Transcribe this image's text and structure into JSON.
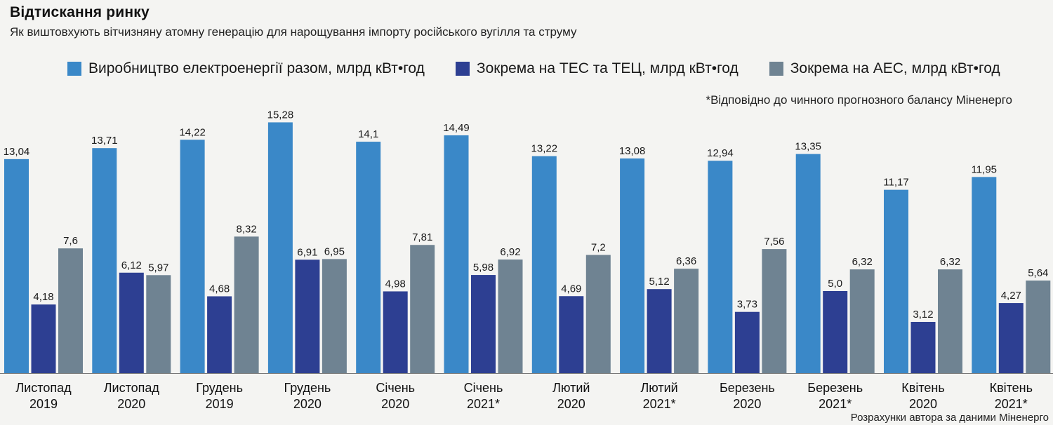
{
  "title": "Відтискання ринку",
  "subtitle": "Як виштовхують вітчизняну атомну генерацію для нарощування імпорту російського вугілля та струму",
  "note": "*Відповідно до чинного прогнозного балансу Міненерго",
  "source": "Розрахунки автора за даними Міненерго",
  "colors": {
    "total": "#3a88c8",
    "tes": "#2d3f92",
    "aes": "#6f8392",
    "background": "#f4f4f2"
  },
  "chart_data": {
    "type": "bar",
    "title": "Відтискання ринку",
    "xlabel": "",
    "ylabel": "",
    "ylim": [
      0,
      16
    ],
    "grid": false,
    "legend_position": "top",
    "categories": [
      [
        "Листопад",
        "2019"
      ],
      [
        "Листопад",
        "2020"
      ],
      [
        "Грудень",
        "2019"
      ],
      [
        "Грудень",
        "2020"
      ],
      [
        "Січень",
        "2020"
      ],
      [
        "Січень",
        "2021*"
      ],
      [
        "Лютий",
        "2020"
      ],
      [
        "Лютий",
        "2021*"
      ],
      [
        "Березень",
        "2020"
      ],
      [
        "Березень",
        "2021*"
      ],
      [
        "Квітень",
        "2020"
      ],
      [
        "Квітень",
        "2021*"
      ]
    ],
    "series": [
      {
        "name": "Виробництво електроенергії разом, млрд кВт•год",
        "color": "#3a88c8",
        "values": [
          13.04,
          13.71,
          14.22,
          15.28,
          14.1,
          14.49,
          13.22,
          13.08,
          12.94,
          13.35,
          11.17,
          11.95
        ],
        "labels": [
          "13,04",
          "13,71",
          "14,22",
          "15,28",
          "14,1",
          "14,49",
          "13,22",
          "13,08",
          "12,94",
          "13,35",
          "11,17",
          "11,95"
        ]
      },
      {
        "name": "Зокрема на ТЕС та ТЕЦ, млрд кВт•год",
        "color": "#2d3f92",
        "values": [
          4.18,
          6.12,
          4.68,
          6.91,
          4.98,
          5.98,
          4.69,
          5.12,
          3.73,
          5.0,
          3.12,
          4.27
        ],
        "labels": [
          "4,18",
          "6,12",
          "4,68",
          "6,91",
          "4,98",
          "5,98",
          "4,69",
          "5,12",
          "3,73",
          "5,0",
          "3,12",
          "4,27"
        ]
      },
      {
        "name": "Зокрема на АЕС, млрд кВт•год",
        "color": "#6f8392",
        "values": [
          7.6,
          5.97,
          8.32,
          6.95,
          7.81,
          6.92,
          7.2,
          6.36,
          7.56,
          6.32,
          6.32,
          5.64
        ],
        "labels": [
          "7,6",
          "5,97",
          "8,32",
          "6,95",
          "7,81",
          "6,92",
          "7,2",
          "6,36",
          "7,56",
          "6,32",
          "6,32",
          "5,64"
        ]
      }
    ]
  }
}
